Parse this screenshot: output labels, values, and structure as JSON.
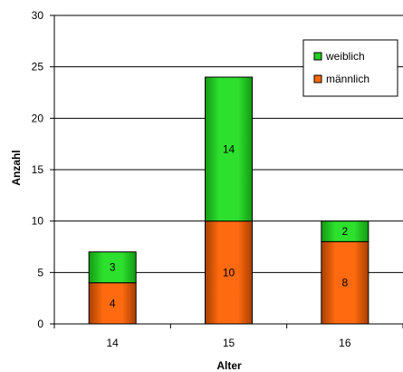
{
  "chart_data": {
    "type": "bar",
    "stacked": true,
    "categories": [
      "14",
      "15",
      "16"
    ],
    "series": [
      {
        "name": "männlich",
        "values": [
          4,
          10,
          8
        ],
        "color": "#ff6600"
      },
      {
        "name": "weiblich",
        "values": [
          3,
          14,
          2
        ],
        "color": "#22d022"
      }
    ],
    "legend_order": [
      "weiblich",
      "männlich"
    ],
    "legend_position": "top-right",
    "xlabel": "Alter",
    "ylabel": "Anzahl",
    "ylim": [
      0,
      30
    ],
    "yticks": [
      0,
      5,
      10,
      15,
      20,
      25,
      30
    ],
    "grid": true,
    "data_labels": true
  }
}
